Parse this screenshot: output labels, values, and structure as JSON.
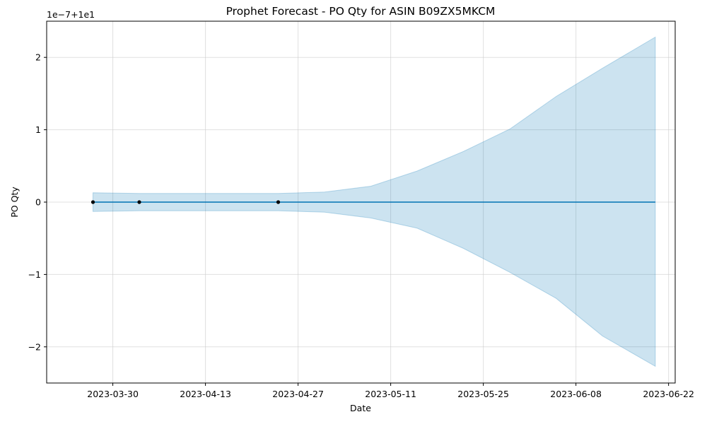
{
  "chart_data": {
    "type": "line",
    "title": "Prophet Forecast - PO Qty for ASIN B09ZX5MKCM",
    "xlabel": "Date",
    "ylabel": "PO Qty",
    "y_offset_label": "1e−7+1e1",
    "y_scale": 1e-07,
    "y_base": 10,
    "xlim": [
      "2023-03-20",
      "2023-06-23"
    ],
    "ylim": [
      -2.5,
      2.5
    ],
    "x_ticks": [
      "2023-03-30",
      "2023-04-13",
      "2023-04-27",
      "2023-05-11",
      "2023-05-25",
      "2023-06-08",
      "2023-06-22"
    ],
    "y_ticks": [
      -2,
      -1,
      0,
      1,
      2
    ],
    "y_tick_labels": [
      "−2",
      "−1",
      "0",
      "1",
      "2"
    ],
    "grid": true,
    "colors": {
      "forecast": "#0072B2",
      "band": "#0072B2",
      "observed": "#000000",
      "grid": "#cccccc"
    },
    "series": [
      {
        "kind": "observed",
        "x": [
          "2023-03-27",
          "2023-04-03",
          "2023-04-24"
        ],
        "y": [
          0,
          0,
          0
        ]
      },
      {
        "kind": "forecast",
        "x": [
          "2023-03-27",
          "2023-06-20"
        ],
        "y": [
          0,
          0
        ]
      },
      {
        "kind": "interval",
        "x": [
          "2023-03-27",
          "2023-04-03",
          "2023-04-10",
          "2023-04-17",
          "2023-04-24",
          "2023-05-01",
          "2023-05-08",
          "2023-05-15",
          "2023-05-22",
          "2023-05-29",
          "2023-06-05",
          "2023-06-12",
          "2023-06-20"
        ],
        "upper": [
          0.13,
          0.12,
          0.12,
          0.12,
          0.12,
          0.14,
          0.22,
          0.43,
          0.7,
          1.01,
          1.46,
          1.85,
          2.28
        ],
        "lower": [
          -0.13,
          -0.12,
          -0.12,
          -0.12,
          -0.12,
          -0.14,
          -0.22,
          -0.36,
          -0.64,
          -0.97,
          -1.33,
          -1.85,
          -2.27
        ]
      }
    ]
  }
}
